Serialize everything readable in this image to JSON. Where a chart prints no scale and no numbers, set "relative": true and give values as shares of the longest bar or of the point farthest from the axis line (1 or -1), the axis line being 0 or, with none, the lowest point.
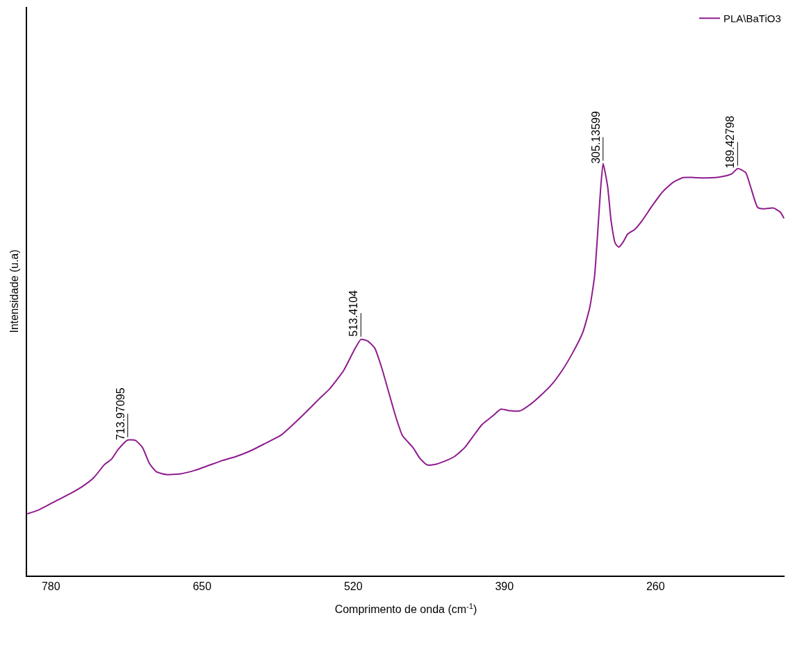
{
  "chart_data": {
    "type": "line",
    "relative": true,
    "xlabel": "Comprimento de onda (cm$^{-1}$)",
    "ylabel": "Intensidade (u.a)",
    "xlim": [
      800.5,
      149
    ],
    "xticks": [
      780,
      650,
      520,
      390,
      260
    ],
    "grid": false,
    "legend": "top right",
    "marker": "none",
    "line_style": "solid",
    "x": [
      800.3,
      790.7,
      775.8,
      763.9,
      752.0,
      743.0,
      734.1,
      728.1,
      722.2,
      714.0,
      707.3,
      701.3,
      695.3,
      689.4,
      680.4,
      668.5,
      656.6,
      644.6,
      632.7,
      620.8,
      608.9,
      596.9,
      582.0,
      573.1,
      561.2,
      549.2,
      540.3,
      528.4,
      519.4,
      513.4,
      507.5,
      501.5,
      495.6,
      489.6,
      483.6,
      477.7,
      468.7,
      462.8,
      456.8,
      450.8,
      441.9,
      432.9,
      424.0,
      415.1,
      409.1,
      400.2,
      393.0,
      385.3,
      376.3,
      367.4,
      358.4,
      349.5,
      340.5,
      331.6,
      322.6,
      316.7,
      312.5,
      309.5,
      307.1,
      305.1,
      301.2,
      298.2,
      294.6,
      291.6,
      288.0,
      283.9,
      277.9,
      271.9,
      263.0,
      254.0,
      245.1,
      236.2,
      227.2,
      215.3,
      203.3,
      194.4,
      189.4,
      182.5,
      178.3,
      172.3,
      167.6,
      158.6,
      152.7,
      149.5
    ],
    "series": [
      {
        "name": "PLA\\BaTiO3",
        "color": "#8e1b8e",
        "values": [
          0.15,
          0.159,
          0.181,
          0.198,
          0.218,
          0.238,
          0.269,
          0.282,
          0.306,
          0.329,
          0.328,
          0.311,
          0.272,
          0.252,
          0.245,
          0.247,
          0.255,
          0.267,
          0.279,
          0.289,
          0.302,
          0.319,
          0.341,
          0.363,
          0.395,
          0.429,
          0.453,
          0.497,
          0.546,
          0.573,
          0.569,
          0.552,
          0.505,
          0.446,
          0.387,
          0.34,
          0.311,
          0.285,
          0.269,
          0.269,
          0.277,
          0.289,
          0.311,
          0.345,
          0.367,
          0.387,
          0.404,
          0.4,
          0.4,
          0.416,
          0.438,
          0.463,
          0.497,
          0.539,
          0.59,
          0.649,
          0.725,
          0.843,
          0.944,
          1.0,
          0.944,
          0.86,
          0.806,
          0.797,
          0.809,
          0.829,
          0.84,
          0.86,
          0.897,
          0.931,
          0.954,
          0.966,
          0.966,
          0.965,
          0.968,
          0.975,
          0.988,
          0.978,
          0.944,
          0.894,
          0.89,
          0.892,
          0.882,
          0.867
        ]
      }
    ],
    "annotations": [
      {
        "text": "713.97095",
        "x": 713.97095,
        "y": 0.329
      },
      {
        "text": "513.4104",
        "x": 513.4104,
        "y": 0.573
      },
      {
        "text": "305.13599",
        "x": 305.13599,
        "y": 1.0
      },
      {
        "text": "189.42798",
        "x": 189.42798,
        "y": 0.988
      }
    ]
  }
}
